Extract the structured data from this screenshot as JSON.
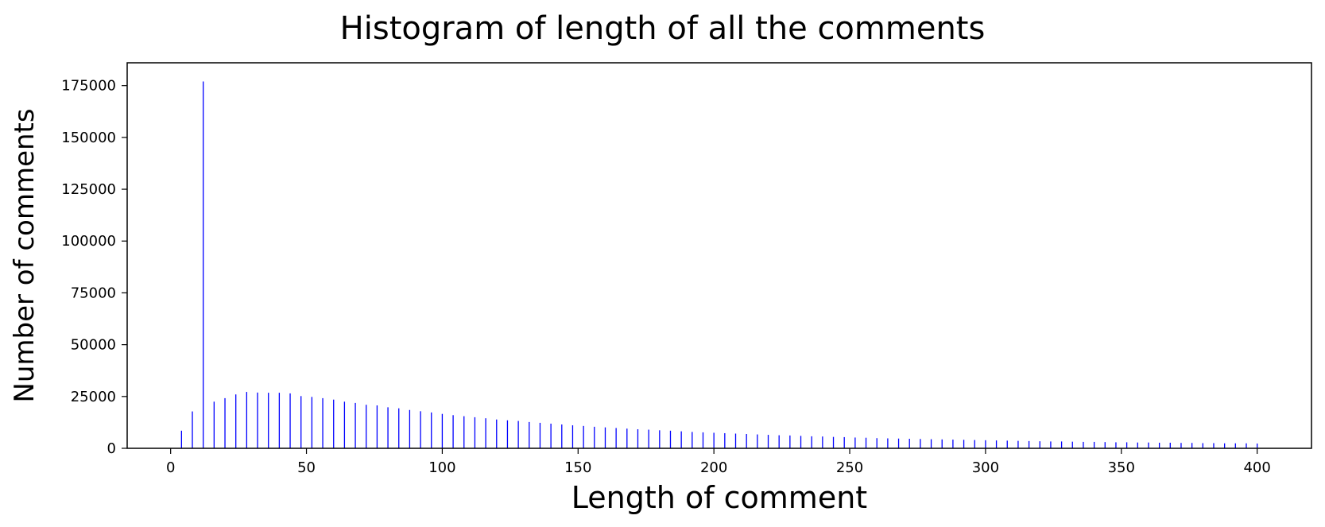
{
  "chart_data": {
    "type": "bar",
    "title": "Histogram of length of all the comments",
    "xlabel": "Length of comment",
    "ylabel": "Number of comments",
    "xlim": [
      -16,
      420
    ],
    "ylim": [
      0,
      186000
    ],
    "xticks": [
      0,
      50,
      100,
      150,
      200,
      250,
      300,
      350,
      400
    ],
    "yticks": [
      0,
      25000,
      50000,
      75000,
      100000,
      125000,
      150000,
      175000
    ],
    "bar_color": "#0000ff",
    "grid": false,
    "x": [
      4,
      8,
      12,
      16,
      20,
      24,
      28,
      32,
      36,
      40,
      44,
      48,
      52,
      56,
      60,
      64,
      68,
      72,
      76,
      80,
      84,
      88,
      92,
      96,
      100,
      104,
      108,
      112,
      116,
      120,
      124,
      128,
      132,
      136,
      140,
      144,
      148,
      152,
      156,
      160,
      164,
      168,
      172,
      176,
      180,
      184,
      188,
      192,
      196,
      200,
      204,
      208,
      212,
      216,
      220,
      224,
      228,
      232,
      236,
      240,
      244,
      248,
      252,
      256,
      260,
      264,
      268,
      272,
      276,
      280,
      284,
      288,
      292,
      296,
      300,
      304,
      308,
      312,
      316,
      320,
      324,
      328,
      332,
      336,
      340,
      344,
      348,
      352,
      356,
      360,
      364,
      368,
      372,
      376,
      380,
      384,
      388,
      392,
      396,
      400
    ],
    "values": [
      8500,
      17800,
      177000,
      22500,
      24200,
      26000,
      27200,
      26900,
      26800,
      26800,
      26500,
      25200,
      24800,
      24200,
      23500,
      22500,
      21900,
      21000,
      20700,
      19800,
      19300,
      18500,
      17900,
      17300,
      16600,
      16000,
      15500,
      15000,
      14500,
      13900,
      13500,
      13200,
      12700,
      12300,
      11900,
      11500,
      11100,
      10800,
      10400,
      10100,
      9800,
      9500,
      9200,
      9000,
      8700,
      8500,
      8200,
      7900,
      7700,
      7500,
      7300,
      7100,
      6900,
      6700,
      6500,
      6300,
      6200,
      6000,
      5800,
      5700,
      5500,
      5400,
      5200,
      5100,
      4900,
      4800,
      4700,
      4600,
      4500,
      4400,
      4300,
      4200,
      4100,
      4000,
      3900,
      3800,
      3700,
      3600,
      3500,
      3400,
      3300,
      3300,
      3200,
      3100,
      3100,
      3000,
      2900,
      2900,
      2800,
      2800,
      2700,
      2700,
      2600,
      2600,
      2500,
      2500,
      2400,
      2400,
      2400,
      2300
    ]
  }
}
